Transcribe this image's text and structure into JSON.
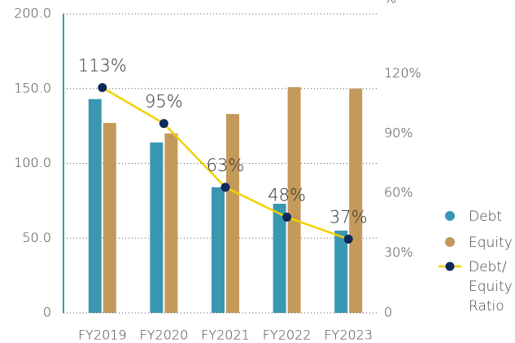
{
  "chart_data": {
    "type": "bar",
    "categories": [
      "FY2019",
      "FY2020",
      "FY2021",
      "FY2022",
      "FY2023"
    ],
    "series": [
      {
        "name": "Debt",
        "color": "#3a97b0",
        "values": [
          143,
          114,
          84,
          73,
          55
        ]
      },
      {
        "name": "Equity",
        "color": "#c49a5a",
        "values": [
          127,
          120,
          133,
          151,
          150
        ]
      },
      {
        "name": "Debt/ Equity Ratio",
        "type": "line",
        "axis": "y2",
        "color": "#f2d000",
        "marker_color": "#0d2a5a",
        "values": [
          113,
          95,
          63,
          48,
          37
        ],
        "value_labels": [
          "113%",
          "95%",
          "63%",
          "48%",
          "37%"
        ]
      }
    ],
    "ylim": [
      0,
      200
    ],
    "yticks": [
      0,
      {
        "value": 50,
        "label": "50.0"
      },
      {
        "value": 100,
        "label": "100.0"
      },
      {
        "value": 150,
        "label": "150.0"
      },
      {
        "value": 200,
        "label": "200.0"
      }
    ],
    "y2lim": [
      0,
      150
    ],
    "y2ticks": [
      0,
      {
        "value": 30,
        "label": "30%"
      },
      {
        "value": 60,
        "label": "60%"
      },
      {
        "value": 90,
        "label": "90%"
      },
      {
        "value": 120,
        "label": "120%"
      }
    ],
    "y2label": "%",
    "grid": true,
    "legend": "right"
  }
}
